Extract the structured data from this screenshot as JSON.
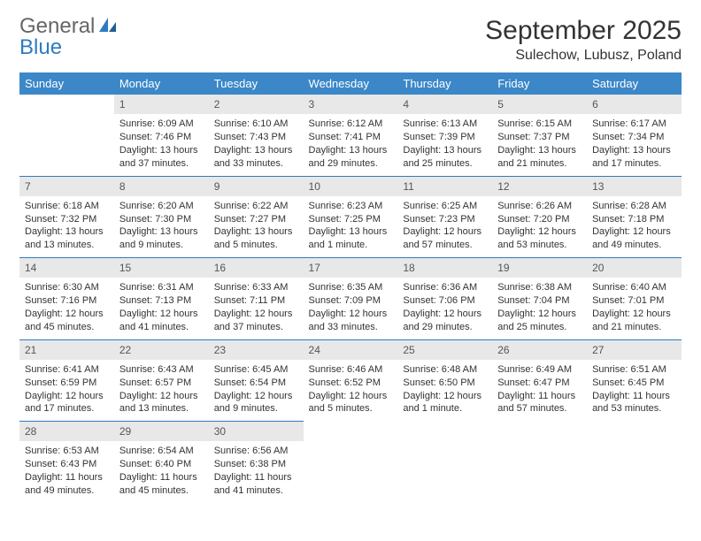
{
  "brand": {
    "part1": "General",
    "part2": "Blue"
  },
  "title": "September 2025",
  "location": "Sulechow, Lubusz, Poland",
  "colors": {
    "header_bg": "#3b87c8",
    "header_text": "#ffffff",
    "daynum_bg": "#e8e8e8",
    "daynum_border": "#2f7bbf",
    "brand_blue": "#2f7bbf",
    "text": "#333333",
    "background": "#ffffff"
  },
  "day_headers": [
    "Sunday",
    "Monday",
    "Tuesday",
    "Wednesday",
    "Thursday",
    "Friday",
    "Saturday"
  ],
  "weeks": [
    [
      {
        "n": ""
      },
      {
        "n": "1",
        "sr": "Sunrise: 6:09 AM",
        "ss": "Sunset: 7:46 PM",
        "dl": "Daylight: 13 hours and 37 minutes."
      },
      {
        "n": "2",
        "sr": "Sunrise: 6:10 AM",
        "ss": "Sunset: 7:43 PM",
        "dl": "Daylight: 13 hours and 33 minutes."
      },
      {
        "n": "3",
        "sr": "Sunrise: 6:12 AM",
        "ss": "Sunset: 7:41 PM",
        "dl": "Daylight: 13 hours and 29 minutes."
      },
      {
        "n": "4",
        "sr": "Sunrise: 6:13 AM",
        "ss": "Sunset: 7:39 PM",
        "dl": "Daylight: 13 hours and 25 minutes."
      },
      {
        "n": "5",
        "sr": "Sunrise: 6:15 AM",
        "ss": "Sunset: 7:37 PM",
        "dl": "Daylight: 13 hours and 21 minutes."
      },
      {
        "n": "6",
        "sr": "Sunrise: 6:17 AM",
        "ss": "Sunset: 7:34 PM",
        "dl": "Daylight: 13 hours and 17 minutes."
      }
    ],
    [
      {
        "n": "7",
        "sr": "Sunrise: 6:18 AM",
        "ss": "Sunset: 7:32 PM",
        "dl": "Daylight: 13 hours and 13 minutes."
      },
      {
        "n": "8",
        "sr": "Sunrise: 6:20 AM",
        "ss": "Sunset: 7:30 PM",
        "dl": "Daylight: 13 hours and 9 minutes."
      },
      {
        "n": "9",
        "sr": "Sunrise: 6:22 AM",
        "ss": "Sunset: 7:27 PM",
        "dl": "Daylight: 13 hours and 5 minutes."
      },
      {
        "n": "10",
        "sr": "Sunrise: 6:23 AM",
        "ss": "Sunset: 7:25 PM",
        "dl": "Daylight: 13 hours and 1 minute."
      },
      {
        "n": "11",
        "sr": "Sunrise: 6:25 AM",
        "ss": "Sunset: 7:23 PM",
        "dl": "Daylight: 12 hours and 57 minutes."
      },
      {
        "n": "12",
        "sr": "Sunrise: 6:26 AM",
        "ss": "Sunset: 7:20 PM",
        "dl": "Daylight: 12 hours and 53 minutes."
      },
      {
        "n": "13",
        "sr": "Sunrise: 6:28 AM",
        "ss": "Sunset: 7:18 PM",
        "dl": "Daylight: 12 hours and 49 minutes."
      }
    ],
    [
      {
        "n": "14",
        "sr": "Sunrise: 6:30 AM",
        "ss": "Sunset: 7:16 PM",
        "dl": "Daylight: 12 hours and 45 minutes."
      },
      {
        "n": "15",
        "sr": "Sunrise: 6:31 AM",
        "ss": "Sunset: 7:13 PM",
        "dl": "Daylight: 12 hours and 41 minutes."
      },
      {
        "n": "16",
        "sr": "Sunrise: 6:33 AM",
        "ss": "Sunset: 7:11 PM",
        "dl": "Daylight: 12 hours and 37 minutes."
      },
      {
        "n": "17",
        "sr": "Sunrise: 6:35 AM",
        "ss": "Sunset: 7:09 PM",
        "dl": "Daylight: 12 hours and 33 minutes."
      },
      {
        "n": "18",
        "sr": "Sunrise: 6:36 AM",
        "ss": "Sunset: 7:06 PM",
        "dl": "Daylight: 12 hours and 29 minutes."
      },
      {
        "n": "19",
        "sr": "Sunrise: 6:38 AM",
        "ss": "Sunset: 7:04 PM",
        "dl": "Daylight: 12 hours and 25 minutes."
      },
      {
        "n": "20",
        "sr": "Sunrise: 6:40 AM",
        "ss": "Sunset: 7:01 PM",
        "dl": "Daylight: 12 hours and 21 minutes."
      }
    ],
    [
      {
        "n": "21",
        "sr": "Sunrise: 6:41 AM",
        "ss": "Sunset: 6:59 PM",
        "dl": "Daylight: 12 hours and 17 minutes."
      },
      {
        "n": "22",
        "sr": "Sunrise: 6:43 AM",
        "ss": "Sunset: 6:57 PM",
        "dl": "Daylight: 12 hours and 13 minutes."
      },
      {
        "n": "23",
        "sr": "Sunrise: 6:45 AM",
        "ss": "Sunset: 6:54 PM",
        "dl": "Daylight: 12 hours and 9 minutes."
      },
      {
        "n": "24",
        "sr": "Sunrise: 6:46 AM",
        "ss": "Sunset: 6:52 PM",
        "dl": "Daylight: 12 hours and 5 minutes."
      },
      {
        "n": "25",
        "sr": "Sunrise: 6:48 AM",
        "ss": "Sunset: 6:50 PM",
        "dl": "Daylight: 12 hours and 1 minute."
      },
      {
        "n": "26",
        "sr": "Sunrise: 6:49 AM",
        "ss": "Sunset: 6:47 PM",
        "dl": "Daylight: 11 hours and 57 minutes."
      },
      {
        "n": "27",
        "sr": "Sunrise: 6:51 AM",
        "ss": "Sunset: 6:45 PM",
        "dl": "Daylight: 11 hours and 53 minutes."
      }
    ],
    [
      {
        "n": "28",
        "sr": "Sunrise: 6:53 AM",
        "ss": "Sunset: 6:43 PM",
        "dl": "Daylight: 11 hours and 49 minutes."
      },
      {
        "n": "29",
        "sr": "Sunrise: 6:54 AM",
        "ss": "Sunset: 6:40 PM",
        "dl": "Daylight: 11 hours and 45 minutes."
      },
      {
        "n": "30",
        "sr": "Sunrise: 6:56 AM",
        "ss": "Sunset: 6:38 PM",
        "dl": "Daylight: 11 hours and 41 minutes."
      },
      {
        "n": ""
      },
      {
        "n": ""
      },
      {
        "n": ""
      },
      {
        "n": ""
      }
    ]
  ]
}
